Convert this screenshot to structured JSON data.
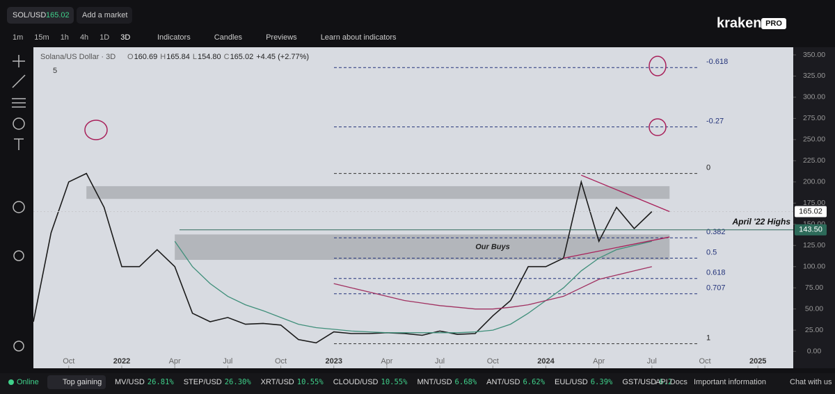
{
  "header": {
    "pair": "SOL/USD",
    "price": "165.02",
    "add_market": "Add a market",
    "timeframes": [
      "1m",
      "15m",
      "1h",
      "4h",
      "1D",
      "3D"
    ],
    "tools": [
      "Indicators",
      "Candles",
      "Previews",
      "Learn about indicators"
    ],
    "brand": "kraken",
    "brand_badge": "PRO"
  },
  "legend": {
    "name": "Solana/US Dollar · 3D",
    "o_label": "O",
    "o": "160.69",
    "h_label": "H",
    "h": "165.84",
    "l_label": "L",
    "l": "154.80",
    "c_label": "C",
    "c": "165.02",
    "change": "+4.45 (+2.77%)",
    "count": "5"
  },
  "chart_data": {
    "type": "line",
    "x": [
      "2021-08",
      "2021-09",
      "2021-10",
      "2021-11",
      "2021-12",
      "2022-01",
      "2022-02",
      "2022-03",
      "2022-04",
      "2022-05",
      "2022-06",
      "2022-07",
      "2022-08",
      "2022-09",
      "2022-10",
      "2022-11",
      "2022-12",
      "2023-01",
      "2023-02",
      "2023-03",
      "2023-04",
      "2023-05",
      "2023-06",
      "2023-07",
      "2023-08",
      "2023-09",
      "2023-10",
      "2023-11",
      "2023-12",
      "2024-01",
      "2024-02",
      "2024-03",
      "2024-04",
      "2024-05",
      "2024-06",
      "2024-07"
    ],
    "series": [
      {
        "color": "#1a1a1a",
        "values": [
          35,
          140,
          200,
          210,
          170,
          100,
          100,
          120,
          100,
          45,
          35,
          40,
          32,
          33,
          31,
          14,
          10,
          23,
          21,
          21,
          22,
          21,
          19,
          24,
          20,
          21,
          42,
          60,
          100,
          100,
          110,
          200,
          130,
          170,
          145,
          165
        ]
      },
      {
        "color": "#3f8f7a",
        "values": [
          null,
          null,
          null,
          null,
          null,
          null,
          null,
          null,
          130,
          100,
          80,
          65,
          55,
          48,
          40,
          32,
          28,
          26,
          24,
          23,
          22,
          22,
          22,
          22,
          22,
          23,
          25,
          32,
          45,
          60,
          75,
          95,
          110,
          120,
          125,
          130
        ]
      },
      {
        "color": "#a03060",
        "values": [
          null,
          null,
          null,
          null,
          null,
          null,
          null,
          null,
          null,
          null,
          null,
          null,
          null,
          null,
          null,
          null,
          null,
          80,
          75,
          70,
          65,
          60,
          57,
          54,
          52,
          50,
          50,
          52,
          55,
          60,
          65,
          75,
          85,
          90,
          95,
          100
        ]
      }
    ],
    "xlim": [
      "2021-08",
      "2025-03"
    ],
    "xticks": [
      {
        "value": "2021-10",
        "label": "Oct"
      },
      {
        "value": "2022-01",
        "label": "2022"
      },
      {
        "value": "2022-04",
        "label": "Apr"
      },
      {
        "value": "2022-07",
        "label": "Jul"
      },
      {
        "value": "2022-10",
        "label": "Oct"
      },
      {
        "value": "2023-01",
        "label": "2023"
      },
      {
        "value": "2023-04",
        "label": "Apr"
      },
      {
        "value": "2023-07",
        "label": "Jul"
      },
      {
        "value": "2023-10",
        "label": "Oct"
      },
      {
        "value": "2024-01",
        "label": "2024"
      },
      {
        "value": "2024-04",
        "label": "Apr"
      },
      {
        "value": "2024-07",
        "label": "Jul"
      },
      {
        "value": "2024-10",
        "label": "Oct"
      },
      {
        "value": "2025-01",
        "label": "2025"
      }
    ],
    "ylim": [
      -20,
      359
    ],
    "yticks": [
      {
        "value": 0,
        "label": "0.00"
      },
      {
        "value": 25,
        "label": "25.00"
      },
      {
        "value": 50,
        "label": "50.00"
      },
      {
        "value": 75,
        "label": "75.00"
      },
      {
        "value": 100,
        "label": "100.00"
      },
      {
        "value": 125,
        "label": "125.00"
      },
      {
        "value": 150,
        "label": "150.00"
      },
      {
        "value": 175,
        "label": "175.00"
      },
      {
        "value": 200,
        "label": "200.00"
      },
      {
        "value": 225,
        "label": "225.00"
      },
      {
        "value": 250,
        "label": "250.00"
      },
      {
        "value": 275,
        "label": "275.00"
      },
      {
        "value": 300,
        "label": "300.00"
      },
      {
        "value": 325,
        "label": "325.00"
      },
      {
        "value": 350,
        "label": "350.00"
      }
    ],
    "fib_levels": [
      {
        "label": "-0.618",
        "value": 335
      },
      {
        "label": "-0.27",
        "value": 265
      },
      {
        "label": "0",
        "value": 210
      },
      {
        "label": "0.382",
        "value": 134
      },
      {
        "label": "0.5",
        "value": 110
      },
      {
        "label": "0.618",
        "value": 86
      },
      {
        "label": "0.707",
        "value": 68
      },
      {
        "label": "1",
        "value": 9
      }
    ],
    "zones": [
      {
        "x": [
          "2021-11",
          "2024-08"
        ],
        "values": [
          180,
          195
        ]
      },
      {
        "x": [
          "2022-04",
          "2024-08"
        ],
        "values": [
          108,
          138
        ],
        "label": "Our Buys"
      }
    ],
    "price_lines": [
      {
        "value": 165.02,
        "label": "165.02",
        "color": "#ffffff"
      },
      {
        "value": 143.5,
        "label": "143.50",
        "color": "#2d6b5a",
        "annotation": "April '22 Highs"
      }
    ],
    "trendlines": [
      {
        "x": [
          "2024-03",
          "2024-08"
        ],
        "values": [
          208,
          165
        ]
      },
      {
        "x": [
          "2024-02",
          "2024-08"
        ],
        "values": [
          110,
          135
        ]
      }
    ]
  },
  "footer": {
    "status": "Online",
    "top": "Top gaining",
    "tickers": [
      [
        "MV/USD",
        "26.81%"
      ],
      [
        "STEP/USD",
        "26.30%"
      ],
      [
        "XRT/USD",
        "10.55%"
      ],
      [
        "CLOUD/USD",
        "10.55%"
      ],
      [
        "MNT/USD",
        "6.68%"
      ],
      [
        "ANT/USD",
        "6.62%"
      ],
      [
        "EUL/USD",
        "6.39%"
      ],
      [
        "GST/USD",
        "6.2"
      ]
    ],
    "links": [
      "API Docs",
      "Important information",
      "Chat with us"
    ]
  }
}
